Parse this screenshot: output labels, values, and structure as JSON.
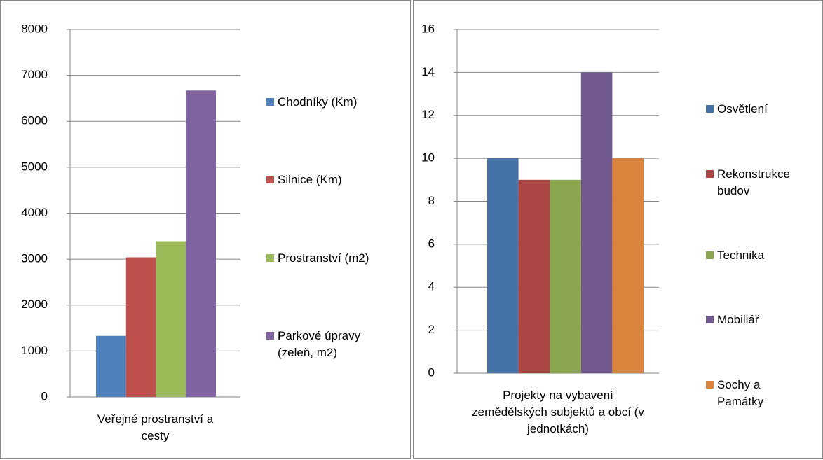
{
  "chart_data": [
    {
      "type": "bar",
      "categories": [
        "Veřejné prostranství a cesty"
      ],
      "series": [
        {
          "name": "Chodníky (Km)",
          "color": "#4f81bd",
          "values": [
            1330
          ]
        },
        {
          "name": "Silnice (Km)",
          "color": "#c0504d",
          "values": [
            3040
          ]
        },
        {
          "name": "Prostranství (m2)",
          "color": "#9bbb59",
          "values": [
            3390
          ]
        },
        {
          "name": "Parkové úpravy (zeleň, m2)",
          "color": "#8064a2",
          "values": [
            6670
          ]
        }
      ],
      "ylim": [
        0,
        8000
      ],
      "yticks": [
        0,
        1000,
        2000,
        3000,
        4000,
        5000,
        6000,
        7000,
        8000
      ],
      "grid": true,
      "legend": "right"
    },
    {
      "type": "bar",
      "categories": [
        "Projekty na vybavení zemědělských subjektů  a obcí (v jednotkách)"
      ],
      "series": [
        {
          "name": "Osvětlení",
          "color": "#4572a7",
          "values": [
            10
          ]
        },
        {
          "name": "Rekonstrukce budov",
          "color": "#aa4643",
          "values": [
            9
          ]
        },
        {
          "name": "Technika",
          "color": "#89a54e",
          "values": [
            9
          ]
        },
        {
          "name": "Mobiliář",
          "color": "#71588f",
          "values": [
            14
          ]
        },
        {
          "name": "Sochy a Památky",
          "color": "#db843d",
          "values": [
            10
          ]
        }
      ],
      "ylim": [
        0,
        16
      ],
      "yticks": [
        0,
        2,
        4,
        6,
        8,
        10,
        12,
        14,
        16
      ],
      "grid": true,
      "legend": "right"
    }
  ]
}
